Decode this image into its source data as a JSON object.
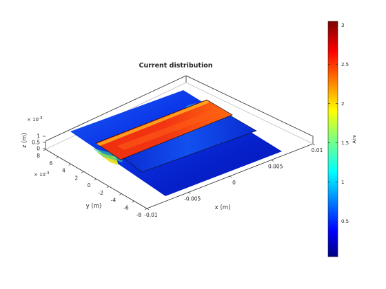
{
  "chart_data": {
    "type": "surface",
    "title": "Current distribution",
    "xlabel": "x (m)",
    "ylabel": "y (m)",
    "zlabel": "z (m)",
    "x_ticks": [
      "-0.01",
      "-0.005",
      "0",
      "0.005",
      "0.01"
    ],
    "x_range": [
      -0.01,
      0.01
    ],
    "y_ticks": [
      "-8",
      "-6",
      "-4",
      "-2",
      "0",
      "2",
      "4",
      "6",
      "8"
    ],
    "y_range": [
      -0.008,
      0.008
    ],
    "y_exponent_base": "× 10",
    "y_exponent_power": "-3",
    "z_ticks": [
      "0",
      "0.5",
      "1"
    ],
    "z_range": [
      0,
      0.001
    ],
    "z_exponent_base": "× 10",
    "z_exponent_power": "-3",
    "colorbar": {
      "label": "A/m",
      "range": [
        0.05,
        3.05
      ],
      "colormap": "jet",
      "ticks": [
        "0.5",
        "1",
        "1.5",
        "2",
        "2.5",
        "3"
      ]
    },
    "surfaces": [
      {
        "layer": "ground plane",
        "z": 0,
        "dominant_value": 0.4
      },
      {
        "layer": "patch",
        "z": 0.0008,
        "dominant_value": 2.8
      },
      {
        "layer": "feed strip",
        "z": 0,
        "dominant_value": 1.6
      }
    ]
  }
}
